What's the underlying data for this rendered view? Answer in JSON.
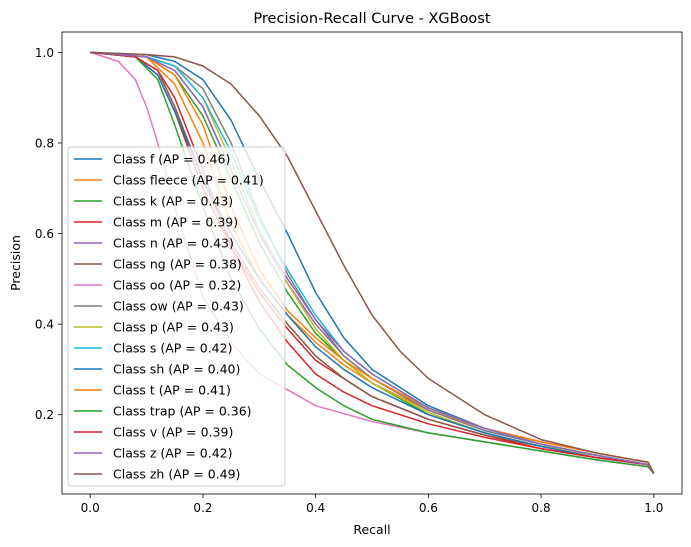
{
  "chart_data": {
    "type": "line",
    "title": "Precision-Recall Curve - XGBoost",
    "xlabel": "Recall",
    "ylabel": "Precision",
    "xlim": [
      -0.05,
      1.05
    ],
    "ylim": [
      0.025,
      1.045
    ],
    "xticks": [
      0.0,
      0.2,
      0.4,
      0.6,
      0.8,
      1.0
    ],
    "xtick_labels": [
      "0.0",
      "0.2",
      "0.4",
      "0.6",
      "0.8",
      "1.0"
    ],
    "yticks": [
      0.2,
      0.4,
      0.6,
      0.8,
      1.0
    ],
    "ytick_labels": [
      "0.2",
      "0.4",
      "0.6",
      "0.8",
      "1.0"
    ],
    "grid": false,
    "legend_position": "left",
    "series": [
      {
        "name": "Class f (AP = 0.46)",
        "color": "#1f77b4",
        "points": [
          [
            0,
            1.0
          ],
          [
            0.1,
            0.995
          ],
          [
            0.15,
            0.98
          ],
          [
            0.2,
            0.94
          ],
          [
            0.25,
            0.85
          ],
          [
            0.3,
            0.72
          ],
          [
            0.35,
            0.6
          ],
          [
            0.4,
            0.47
          ],
          [
            0.45,
            0.37
          ],
          [
            0.5,
            0.3
          ],
          [
            0.6,
            0.22
          ],
          [
            0.7,
            0.17
          ],
          [
            0.8,
            0.135
          ],
          [
            0.9,
            0.11
          ],
          [
            0.99,
            0.09
          ],
          [
            1.0,
            0.07
          ]
        ]
      },
      {
        "name": "Class fleece (AP = 0.41)",
        "color": "#ff7f0e",
        "points": [
          [
            0,
            1.0
          ],
          [
            0.1,
            0.99
          ],
          [
            0.15,
            0.93
          ],
          [
            0.2,
            0.8
          ],
          [
            0.25,
            0.62
          ],
          [
            0.3,
            0.5
          ],
          [
            0.35,
            0.42
          ],
          [
            0.4,
            0.36
          ],
          [
            0.45,
            0.31
          ],
          [
            0.5,
            0.27
          ],
          [
            0.6,
            0.21
          ],
          [
            0.7,
            0.17
          ],
          [
            0.8,
            0.14
          ],
          [
            0.9,
            0.115
          ],
          [
            0.99,
            0.095
          ],
          [
            1.0,
            0.07
          ]
        ]
      },
      {
        "name": "Class k (AP = 0.43)",
        "color": "#2ca02c",
        "points": [
          [
            0,
            1.0
          ],
          [
            0.1,
            0.99
          ],
          [
            0.15,
            0.95
          ],
          [
            0.2,
            0.86
          ],
          [
            0.25,
            0.72
          ],
          [
            0.3,
            0.58
          ],
          [
            0.35,
            0.47
          ],
          [
            0.4,
            0.38
          ],
          [
            0.45,
            0.32
          ],
          [
            0.5,
            0.27
          ],
          [
            0.6,
            0.2
          ],
          [
            0.7,
            0.16
          ],
          [
            0.8,
            0.13
          ],
          [
            0.9,
            0.11
          ],
          [
            0.99,
            0.09
          ],
          [
            1.0,
            0.07
          ]
        ]
      },
      {
        "name": "Class m (AP = 0.39)",
        "color": "#d62728",
        "points": [
          [
            0,
            1.0
          ],
          [
            0.08,
            0.99
          ],
          [
            0.12,
            0.95
          ],
          [
            0.15,
            0.87
          ],
          [
            0.2,
            0.7
          ],
          [
            0.25,
            0.57
          ],
          [
            0.3,
            0.47
          ],
          [
            0.35,
            0.39
          ],
          [
            0.4,
            0.32
          ],
          [
            0.45,
            0.28
          ],
          [
            0.5,
            0.24
          ],
          [
            0.6,
            0.19
          ],
          [
            0.7,
            0.155
          ],
          [
            0.8,
            0.125
          ],
          [
            0.9,
            0.105
          ],
          [
            0.99,
            0.09
          ],
          [
            1.0,
            0.07
          ]
        ]
      },
      {
        "name": "Class n (AP = 0.43)",
        "color": "#9467bd",
        "points": [
          [
            0,
            1.0
          ],
          [
            0.1,
            0.99
          ],
          [
            0.15,
            0.96
          ],
          [
            0.2,
            0.88
          ],
          [
            0.25,
            0.74
          ],
          [
            0.3,
            0.6
          ],
          [
            0.35,
            0.49
          ],
          [
            0.4,
            0.4
          ],
          [
            0.45,
            0.33
          ],
          [
            0.5,
            0.28
          ],
          [
            0.6,
            0.21
          ],
          [
            0.7,
            0.165
          ],
          [
            0.8,
            0.135
          ],
          [
            0.9,
            0.11
          ],
          [
            0.99,
            0.09
          ],
          [
            1.0,
            0.07
          ]
        ]
      },
      {
        "name": "Class ng (AP = 0.38)",
        "color": "#8c564b",
        "points": [
          [
            0,
            1.0
          ],
          [
            0.08,
            0.99
          ],
          [
            0.12,
            0.96
          ],
          [
            0.15,
            0.88
          ],
          [
            0.2,
            0.72
          ],
          [
            0.25,
            0.58
          ],
          [
            0.3,
            0.48
          ],
          [
            0.35,
            0.4
          ],
          [
            0.4,
            0.33
          ],
          [
            0.45,
            0.28
          ],
          [
            0.5,
            0.24
          ],
          [
            0.6,
            0.19
          ],
          [
            0.7,
            0.155
          ],
          [
            0.8,
            0.13
          ],
          [
            0.9,
            0.105
          ],
          [
            0.99,
            0.09
          ],
          [
            1.0,
            0.07
          ]
        ]
      },
      {
        "name": "Class oo (AP = 0.32)",
        "color": "#e377c2",
        "points": [
          [
            0,
            1.0
          ],
          [
            0.05,
            0.98
          ],
          [
            0.08,
            0.94
          ],
          [
            0.1,
            0.88
          ],
          [
            0.12,
            0.8
          ],
          [
            0.15,
            0.66
          ],
          [
            0.18,
            0.54
          ],
          [
            0.2,
            0.46
          ],
          [
            0.25,
            0.36
          ],
          [
            0.3,
            0.29
          ],
          [
            0.35,
            0.255
          ],
          [
            0.4,
            0.22
          ],
          [
            0.5,
            0.185
          ],
          [
            0.6,
            0.16
          ],
          [
            0.7,
            0.14
          ],
          [
            0.8,
            0.12
          ],
          [
            0.9,
            0.1
          ],
          [
            0.99,
            0.085
          ],
          [
            1.0,
            0.07
          ]
        ]
      },
      {
        "name": "Class ow (AP = 0.43)",
        "color": "#7f7f7f",
        "points": [
          [
            0,
            1.0
          ],
          [
            0.1,
            0.99
          ],
          [
            0.15,
            0.97
          ],
          [
            0.2,
            0.92
          ],
          [
            0.25,
            0.8
          ],
          [
            0.3,
            0.64
          ],
          [
            0.35,
            0.51
          ],
          [
            0.4,
            0.41
          ],
          [
            0.45,
            0.33
          ],
          [
            0.5,
            0.28
          ],
          [
            0.6,
            0.21
          ],
          [
            0.7,
            0.165
          ],
          [
            0.8,
            0.135
          ],
          [
            0.9,
            0.11
          ],
          [
            0.99,
            0.09
          ],
          [
            1.0,
            0.07
          ]
        ]
      },
      {
        "name": "Class p (AP = 0.43)",
        "color": "#bcbd22",
        "points": [
          [
            0,
            1.0
          ],
          [
            0.1,
            0.99
          ],
          [
            0.15,
            0.97
          ],
          [
            0.2,
            0.9
          ],
          [
            0.25,
            0.76
          ],
          [
            0.3,
            0.61
          ],
          [
            0.35,
            0.49
          ],
          [
            0.4,
            0.39
          ],
          [
            0.45,
            0.32
          ],
          [
            0.5,
            0.27
          ],
          [
            0.6,
            0.205
          ],
          [
            0.7,
            0.16
          ],
          [
            0.8,
            0.13
          ],
          [
            0.9,
            0.11
          ],
          [
            0.99,
            0.09
          ],
          [
            1.0,
            0.07
          ]
        ]
      },
      {
        "name": "Class s (AP = 0.42)",
        "color": "#17becf",
        "points": [
          [
            0,
            1.0
          ],
          [
            0.1,
            0.99
          ],
          [
            0.15,
            0.97
          ],
          [
            0.2,
            0.9
          ],
          [
            0.25,
            0.78
          ],
          [
            0.3,
            0.63
          ],
          [
            0.35,
            0.52
          ],
          [
            0.4,
            0.42
          ],
          [
            0.45,
            0.34
          ],
          [
            0.5,
            0.29
          ],
          [
            0.6,
            0.215
          ],
          [
            0.7,
            0.17
          ],
          [
            0.8,
            0.135
          ],
          [
            0.9,
            0.11
          ],
          [
            0.99,
            0.09
          ],
          [
            1.0,
            0.07
          ]
        ]
      },
      {
        "name": "Class sh (AP = 0.40)",
        "color": "#1f77b4",
        "points": [
          [
            0,
            1.0
          ],
          [
            0.08,
            0.99
          ],
          [
            0.12,
            0.95
          ],
          [
            0.15,
            0.87
          ],
          [
            0.2,
            0.72
          ],
          [
            0.25,
            0.6
          ],
          [
            0.3,
            0.5
          ],
          [
            0.35,
            0.42
          ],
          [
            0.4,
            0.35
          ],
          [
            0.45,
            0.3
          ],
          [
            0.5,
            0.26
          ],
          [
            0.6,
            0.2
          ],
          [
            0.7,
            0.16
          ],
          [
            0.8,
            0.13
          ],
          [
            0.9,
            0.105
          ],
          [
            0.99,
            0.09
          ],
          [
            1.0,
            0.07
          ]
        ]
      },
      {
        "name": "Class t (AP = 0.41)",
        "color": "#ff7f0e",
        "points": [
          [
            0,
            1.0
          ],
          [
            0.1,
            0.99
          ],
          [
            0.15,
            0.95
          ],
          [
            0.2,
            0.84
          ],
          [
            0.25,
            0.66
          ],
          [
            0.3,
            0.52
          ],
          [
            0.35,
            0.43
          ],
          [
            0.4,
            0.37
          ],
          [
            0.45,
            0.32
          ],
          [
            0.5,
            0.28
          ],
          [
            0.6,
            0.215
          ],
          [
            0.7,
            0.17
          ],
          [
            0.8,
            0.14
          ],
          [
            0.9,
            0.115
          ],
          [
            0.99,
            0.095
          ],
          [
            1.0,
            0.07
          ]
        ]
      },
      {
        "name": "Class trap (AP = 0.36)",
        "color": "#2ca02c",
        "points": [
          [
            0,
            1.0
          ],
          [
            0.08,
            0.99
          ],
          [
            0.12,
            0.94
          ],
          [
            0.15,
            0.84
          ],
          [
            0.2,
            0.66
          ],
          [
            0.25,
            0.5
          ],
          [
            0.3,
            0.39
          ],
          [
            0.35,
            0.31
          ],
          [
            0.4,
            0.26
          ],
          [
            0.45,
            0.22
          ],
          [
            0.5,
            0.19
          ],
          [
            0.6,
            0.16
          ],
          [
            0.7,
            0.14
          ],
          [
            0.8,
            0.12
          ],
          [
            0.9,
            0.1
          ],
          [
            0.99,
            0.085
          ],
          [
            1.0,
            0.07
          ]
        ]
      },
      {
        "name": "Class v (AP = 0.39)",
        "color": "#d62728",
        "points": [
          [
            0,
            1.0
          ],
          [
            0.08,
            0.99
          ],
          [
            0.12,
            0.96
          ],
          [
            0.15,
            0.9
          ],
          [
            0.2,
            0.74
          ],
          [
            0.25,
            0.57
          ],
          [
            0.3,
            0.45
          ],
          [
            0.35,
            0.36
          ],
          [
            0.4,
            0.29
          ],
          [
            0.45,
            0.25
          ],
          [
            0.5,
            0.22
          ],
          [
            0.6,
            0.18
          ],
          [
            0.7,
            0.15
          ],
          [
            0.8,
            0.125
          ],
          [
            0.9,
            0.105
          ],
          [
            0.99,
            0.09
          ],
          [
            1.0,
            0.07
          ]
        ]
      },
      {
        "name": "Class z (AP = 0.42)",
        "color": "#9467bd",
        "points": [
          [
            0,
            1.0
          ],
          [
            0.1,
            0.99
          ],
          [
            0.15,
            0.96
          ],
          [
            0.2,
            0.88
          ],
          [
            0.25,
            0.74
          ],
          [
            0.3,
            0.6
          ],
          [
            0.35,
            0.5
          ],
          [
            0.4,
            0.41
          ],
          [
            0.45,
            0.34
          ],
          [
            0.5,
            0.29
          ],
          [
            0.6,
            0.215
          ],
          [
            0.7,
            0.17
          ],
          [
            0.8,
            0.135
          ],
          [
            0.9,
            0.11
          ],
          [
            0.99,
            0.09
          ],
          [
            1.0,
            0.07
          ]
        ]
      },
      {
        "name": "Class zh (AP = 0.49)",
        "color": "#8c564b",
        "points": [
          [
            0,
            1.0
          ],
          [
            0.1,
            0.995
          ],
          [
            0.15,
            0.99
          ],
          [
            0.2,
            0.97
          ],
          [
            0.25,
            0.93
          ],
          [
            0.3,
            0.86
          ],
          [
            0.35,
            0.77
          ],
          [
            0.4,
            0.65
          ],
          [
            0.45,
            0.53
          ],
          [
            0.5,
            0.42
          ],
          [
            0.55,
            0.34
          ],
          [
            0.6,
            0.28
          ],
          [
            0.7,
            0.2
          ],
          [
            0.8,
            0.145
          ],
          [
            0.9,
            0.115
          ],
          [
            0.99,
            0.095
          ],
          [
            1.0,
            0.07
          ]
        ]
      }
    ]
  }
}
